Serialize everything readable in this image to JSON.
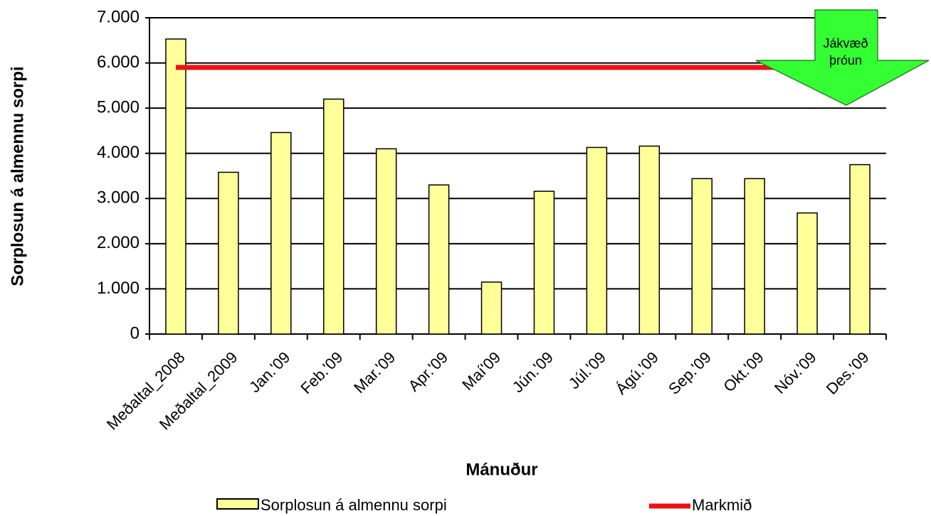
{
  "chart_data": {
    "type": "bar",
    "x_label": "Mánuður",
    "y_label": "Sorplosun á almennu sorpi",
    "categories": [
      "Meðaltal_2008",
      "Meðaltal_2009",
      "Jan.'09",
      "Feb.'09",
      "Mar.'09",
      "Apr.'09",
      "Maí'09",
      "Jún.'09",
      "Júl.'09",
      "Ágú.'09",
      "Sep.'09",
      "Okt.'09",
      "Nóv.'09",
      "Des.'09"
    ],
    "series": [
      {
        "name": "Sorplosun á almennu sorpi",
        "type": "bar",
        "color": "#ffff99",
        "values": [
          6530,
          3580,
          4460,
          5200,
          4100,
          3300,
          1150,
          3160,
          4130,
          4160,
          3440,
          3440,
          2680,
          3750
        ]
      },
      {
        "name": "Markmið",
        "type": "line",
        "color": "#ee1111",
        "values": [
          5900,
          5900,
          5900,
          5900,
          5900,
          5900,
          5900,
          5900,
          5900,
          5900,
          5900,
          5900,
          5900,
          5900
        ]
      }
    ],
    "ylim": [
      0,
      7000
    ],
    "yticks": [
      0,
      {
        "value": 1000,
        "label": "1.000"
      },
      {
        "value": 2000,
        "label": "2.000"
      },
      {
        "value": 3000,
        "label": "3.000"
      },
      {
        "value": 4000,
        "label": "4.000"
      },
      {
        "value": 5000,
        "label": "5.000"
      },
      {
        "value": 6000,
        "label": "6.000"
      },
      {
        "value": 7000,
        "label": "7.000"
      }
    ],
    "grid": true,
    "annotation_lines": [
      "Jákvæð",
      "þróun"
    ],
    "legend": "bottom"
  }
}
